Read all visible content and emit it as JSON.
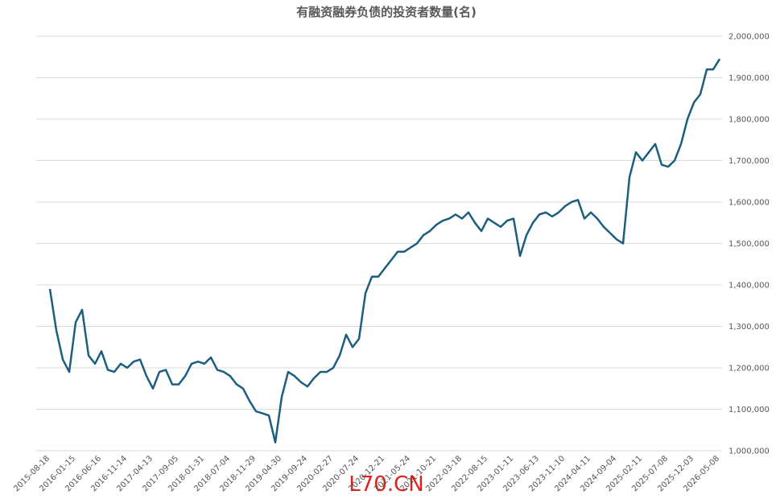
{
  "chart_data": {
    "type": "line",
    "title": "有融资融券负债的投资者数量(名)",
    "watermark": "L70.CN",
    "categories": [
      "2015-08-18",
      null,
      null,
      null,
      "2016-01-15",
      null,
      null,
      null,
      "2016-06-16",
      null,
      null,
      null,
      "2016-11-14",
      null,
      null,
      null,
      "2017-04-13",
      null,
      null,
      null,
      "2017-09-05",
      null,
      null,
      null,
      "2018-01-31",
      null,
      null,
      null,
      "2018-07-04",
      null,
      null,
      null,
      "2018-11-29",
      null,
      null,
      null,
      "2019-04-30",
      null,
      null,
      null,
      "2019-09-24",
      null,
      null,
      null,
      "2020-02-27",
      null,
      null,
      null,
      "2020-07-24",
      null,
      null,
      null,
      "2020-12-21",
      null,
      null,
      null,
      "2021-05-24",
      null,
      null,
      null,
      "2021-10-21",
      null,
      null,
      null,
      "2022-03-18",
      null,
      null,
      null,
      "2022-08-15",
      null,
      null,
      null,
      "2023-01-11",
      null,
      null,
      null,
      "2023-06-13",
      null,
      null,
      null,
      "2023-11-10",
      null,
      null,
      null,
      "2024-04-11",
      null,
      null,
      null,
      "2024-09-04",
      null,
      null,
      null,
      "2025-02-11",
      null,
      null,
      null,
      "2025-07-08",
      null,
      null,
      null,
      "2025-12-03",
      null,
      null,
      null,
      "2026-05-08"
    ],
    "series": [
      {
        "color": "#1b5e80",
        "values": [
          1390000,
          1290000,
          1220000,
          1190000,
          1310000,
          1340000,
          1230000,
          1210000,
          1240000,
          1195000,
          1190000,
          1210000,
          1200000,
          1215000,
          1220000,
          1180000,
          1150000,
          1190000,
          1195000,
          1160000,
          1160000,
          1180000,
          1210000,
          1215000,
          1210000,
          1225000,
          1195000,
          1190000,
          1180000,
          1160000,
          1150000,
          1120000,
          1095000,
          1090000,
          1085000,
          1020000,
          1130000,
          1190000,
          1180000,
          1165000,
          1155000,
          1175000,
          1190000,
          1190000,
          1200000,
          1230000,
          1280000,
          1250000,
          1270000,
          1380000,
          1420000,
          1420000,
          1440000,
          1460000,
          1480000,
          1480000,
          1490000,
          1500000,
          1520000,
          1530000,
          1545000,
          1555000,
          1560000,
          1570000,
          1560000,
          1575000,
          1550000,
          1530000,
          1560000,
          1550000,
          1540000,
          1555000,
          1560000,
          1470000,
          1520000,
          1550000,
          1570000,
          1575000,
          1565000,
          1575000,
          1590000,
          1600000,
          1605000,
          1560000,
          1575000,
          1560000,
          1540000,
          1525000,
          1510000,
          1500000,
          1660000,
          1720000,
          1700000,
          1720000,
          1740000,
          1690000,
          1685000,
          1700000,
          1740000,
          1800000,
          1840000,
          1860000,
          1920000,
          1920000,
          1945000
        ]
      }
    ],
    "ylim": [
      1000000,
      2000000
    ],
    "yticks": [
      {
        "value": 1000000,
        "label": "1,000,000"
      },
      {
        "value": 1100000,
        "label": "1,100,000"
      },
      {
        "value": 1200000,
        "label": "1,200,000"
      },
      {
        "value": 1300000,
        "label": "1,300,000"
      },
      {
        "value": 1400000,
        "label": "1,400,000"
      },
      {
        "value": 1500000,
        "label": "1,500,000"
      },
      {
        "value": 1600000,
        "label": "1,600,000"
      },
      {
        "value": 1700000,
        "label": "1,700,000"
      },
      {
        "value": 1800000,
        "label": "1,800,000"
      },
      {
        "value": 1900000,
        "label": "1,900,000"
      },
      {
        "value": 2000000,
        "label": "2,000,000"
      }
    ],
    "grid": true
  }
}
